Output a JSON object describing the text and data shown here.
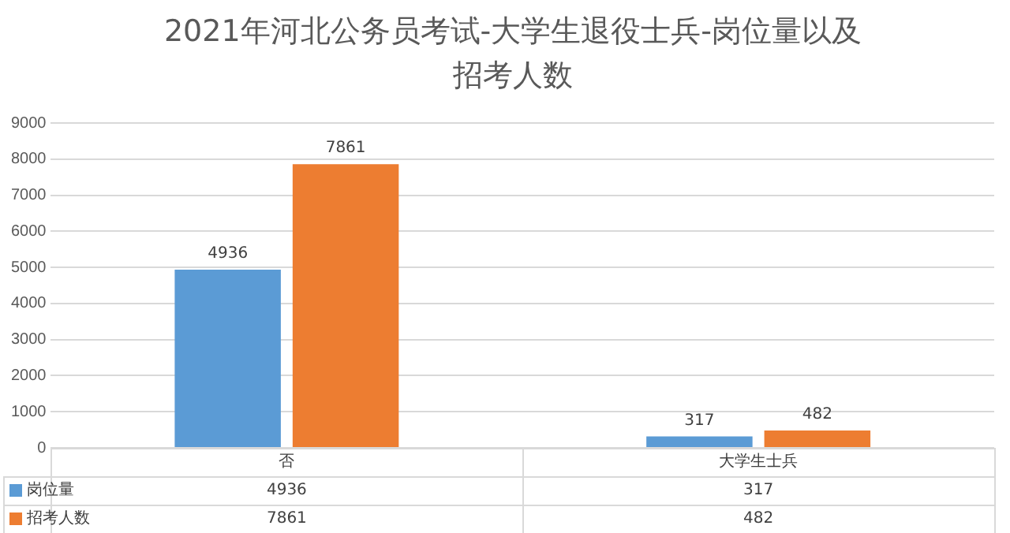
{
  "chart_data": {
    "type": "bar",
    "title": "2021年河北公务员考试-大学生退役士兵-岗位量以及招考人数",
    "categories": [
      "否",
      "大学生士兵"
    ],
    "series": [
      {
        "name": "岗位量",
        "color": "#5b9bd5",
        "values": [
          4936,
          317
        ]
      },
      {
        "name": "招考人数",
        "color": "#ed7d31",
        "values": [
          7861,
          482
        ]
      }
    ],
    "annotations": [
      {
        "text": "4936",
        "x": "否",
        "y": 4936
      },
      {
        "text": "7861",
        "x": "否",
        "y": 7861
      },
      {
        "text": "317",
        "x": "大学生士兵",
        "y": 317
      },
      {
        "text": "482",
        "x": "大学生士兵",
        "y": 482
      }
    ],
    "ylim": [
      0,
      9000
    ],
    "yticks": [
      0,
      1000,
      2000,
      3000,
      4000,
      5000,
      6000,
      7000,
      8000,
      9000
    ],
    "grid": "y",
    "legend": "bottom",
    "data_labels": true
  }
}
